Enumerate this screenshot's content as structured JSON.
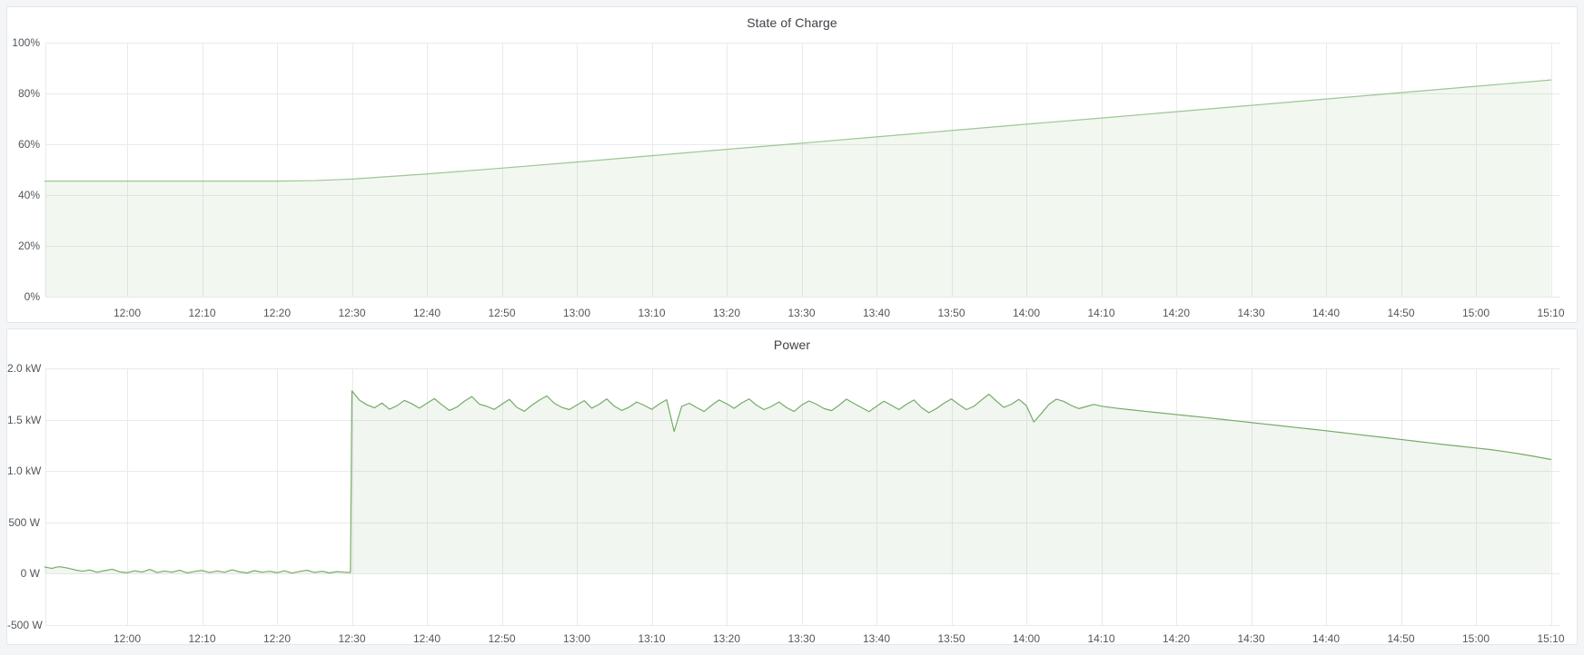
{
  "chart_data": [
    {
      "type": "area",
      "name": "state-of-charge",
      "title": "State of Charge",
      "ylabel": "",
      "xlabel": "",
      "unit": "%",
      "ylim": [
        0,
        100
      ],
      "x_domain_minutes_from_1200": [
        -11,
        190
      ],
      "grid": true,
      "legend": "none",
      "line_color": "#9dc795",
      "fill_color": "rgba(123,176,110,0.10)",
      "yticks": [
        {
          "v": 100,
          "label": "100%"
        },
        {
          "v": 80,
          "label": "80%"
        },
        {
          "v": 60,
          "label": "60%"
        },
        {
          "v": 40,
          "label": "40%"
        },
        {
          "v": 20,
          "label": "20%"
        },
        {
          "v": 0,
          "label": "0%"
        }
      ],
      "xticks": [
        {
          "t": 0,
          "label": "12:00"
        },
        {
          "t": 10,
          "label": "12:10"
        },
        {
          "t": 20,
          "label": "12:20"
        },
        {
          "t": 30,
          "label": "12:30"
        },
        {
          "t": 40,
          "label": "12:40"
        },
        {
          "t": 50,
          "label": "12:50"
        },
        {
          "t": 60,
          "label": "13:00"
        },
        {
          "t": 70,
          "label": "13:10"
        },
        {
          "t": 80,
          "label": "13:20"
        },
        {
          "t": 90,
          "label": "13:30"
        },
        {
          "t": 100,
          "label": "13:40"
        },
        {
          "t": 110,
          "label": "13:50"
        },
        {
          "t": 120,
          "label": "14:00"
        },
        {
          "t": 130,
          "label": "14:10"
        },
        {
          "t": 140,
          "label": "14:20"
        },
        {
          "t": 150,
          "label": "14:30"
        },
        {
          "t": 160,
          "label": "14:40"
        },
        {
          "t": 170,
          "label": "14:50"
        },
        {
          "t": 180,
          "label": "15:00"
        },
        {
          "t": 190,
          "label": "15:10"
        }
      ],
      "points": [
        [
          -11,
          45.5
        ],
        [
          0,
          45.5
        ],
        [
          10,
          45.5
        ],
        [
          20,
          45.5
        ],
        [
          25,
          45.7
        ],
        [
          30,
          46.3
        ],
        [
          40,
          48.3
        ],
        [
          50,
          50.6
        ],
        [
          60,
          53.0
        ],
        [
          70,
          55.5
        ],
        [
          80,
          58.0
        ],
        [
          90,
          60.4
        ],
        [
          100,
          62.9
        ],
        [
          110,
          65.4
        ],
        [
          120,
          67.9
        ],
        [
          130,
          70.3
        ],
        [
          140,
          72.8
        ],
        [
          150,
          75.3
        ],
        [
          160,
          77.8
        ],
        [
          170,
          80.3
        ],
        [
          180,
          82.8
        ],
        [
          190,
          85.3
        ]
      ]
    },
    {
      "type": "area",
      "name": "power",
      "title": "Power",
      "ylabel": "",
      "xlabel": "",
      "unit": "W",
      "ylim": [
        -500,
        2000
      ],
      "x_domain_minutes_from_1200": [
        -11,
        190
      ],
      "grid": true,
      "legend": "none",
      "line_color": "#76ab68",
      "fill_color": "rgba(118,171,104,0.10)",
      "yticks": [
        {
          "v": 2000,
          "label": "2.0 kW"
        },
        {
          "v": 1500,
          "label": "1.5 kW"
        },
        {
          "v": 1000,
          "label": "1.0 kW"
        },
        {
          "v": 500,
          "label": "500 W"
        },
        {
          "v": 0,
          "label": "0 W"
        },
        {
          "v": -500,
          "label": "-500 W"
        }
      ],
      "xticks": [
        {
          "t": 0,
          "label": "12:00"
        },
        {
          "t": 10,
          "label": "12:10"
        },
        {
          "t": 20,
          "label": "12:20"
        },
        {
          "t": 30,
          "label": "12:30"
        },
        {
          "t": 40,
          "label": "12:40"
        },
        {
          "t": 50,
          "label": "12:50"
        },
        {
          "t": 60,
          "label": "13:00"
        },
        {
          "t": 70,
          "label": "13:10"
        },
        {
          "t": 80,
          "label": "13:20"
        },
        {
          "t": 90,
          "label": "13:30"
        },
        {
          "t": 100,
          "label": "13:40"
        },
        {
          "t": 110,
          "label": "13:50"
        },
        {
          "t": 120,
          "label": "14:00"
        },
        {
          "t": 130,
          "label": "14:10"
        },
        {
          "t": 140,
          "label": "14:20"
        },
        {
          "t": 150,
          "label": "14:30"
        },
        {
          "t": 160,
          "label": "14:40"
        },
        {
          "t": 170,
          "label": "14:50"
        },
        {
          "t": 180,
          "label": "15:00"
        },
        {
          "t": 190,
          "label": "15:10"
        }
      ],
      "points": [
        [
          -11,
          66
        ],
        [
          -10.5,
          58
        ],
        [
          -10,
          52
        ],
        [
          -9.5,
          64
        ],
        [
          -9,
          68
        ],
        [
          -8,
          56
        ],
        [
          -7,
          38
        ],
        [
          -6,
          24
        ],
        [
          -5,
          36
        ],
        [
          -4,
          14
        ],
        [
          -3,
          30
        ],
        [
          -2,
          44
        ],
        [
          -1,
          18
        ],
        [
          0,
          10
        ],
        [
          1,
          28
        ],
        [
          2,
          16
        ],
        [
          3,
          42
        ],
        [
          4,
          12
        ],
        [
          5,
          26
        ],
        [
          6,
          15
        ],
        [
          7,
          34
        ],
        [
          8,
          8
        ],
        [
          9,
          22
        ],
        [
          10,
          32
        ],
        [
          11,
          12
        ],
        [
          12,
          26
        ],
        [
          13,
          14
        ],
        [
          14,
          38
        ],
        [
          15,
          18
        ],
        [
          16,
          8
        ],
        [
          17,
          30
        ],
        [
          18,
          14
        ],
        [
          19,
          24
        ],
        [
          20,
          10
        ],
        [
          21,
          28
        ],
        [
          22,
          6
        ],
        [
          23,
          22
        ],
        [
          24,
          34
        ],
        [
          25,
          12
        ],
        [
          26,
          24
        ],
        [
          27,
          8
        ],
        [
          28,
          20
        ],
        [
          29,
          14
        ],
        [
          29.8,
          12
        ],
        [
          30,
          1780
        ],
        [
          31,
          1690
        ],
        [
          32,
          1645
        ],
        [
          33,
          1615
        ],
        [
          34,
          1662
        ],
        [
          35,
          1602
        ],
        [
          36,
          1635
        ],
        [
          37,
          1688
        ],
        [
          38,
          1655
        ],
        [
          39,
          1612
        ],
        [
          40,
          1660
        ],
        [
          41,
          1705
        ],
        [
          42,
          1645
        ],
        [
          43,
          1590
        ],
        [
          44,
          1622
        ],
        [
          45,
          1680
        ],
        [
          46,
          1725
        ],
        [
          47,
          1652
        ],
        [
          48,
          1630
        ],
        [
          49,
          1600
        ],
        [
          50,
          1650
        ],
        [
          51,
          1698
        ],
        [
          52,
          1620
        ],
        [
          53,
          1582
        ],
        [
          54,
          1640
        ],
        [
          55,
          1690
        ],
        [
          56,
          1732
        ],
        [
          57,
          1660
        ],
        [
          58,
          1620
        ],
        [
          59,
          1598
        ],
        [
          60,
          1642
        ],
        [
          61,
          1685
        ],
        [
          62,
          1612
        ],
        [
          63,
          1650
        ],
        [
          64,
          1702
        ],
        [
          65,
          1632
        ],
        [
          66,
          1590
        ],
        [
          67,
          1622
        ],
        [
          68,
          1672
        ],
        [
          69,
          1640
        ],
        [
          70,
          1600
        ],
        [
          71,
          1652
        ],
        [
          72,
          1695
        ],
        [
          73,
          1385
        ],
        [
          74,
          1628
        ],
        [
          75,
          1660
        ],
        [
          76,
          1618
        ],
        [
          77,
          1580
        ],
        [
          78,
          1640
        ],
        [
          79,
          1692
        ],
        [
          80,
          1655
        ],
        [
          81,
          1610
        ],
        [
          82,
          1662
        ],
        [
          83,
          1702
        ],
        [
          84,
          1640
        ],
        [
          85,
          1598
        ],
        [
          86,
          1630
        ],
        [
          87,
          1672
        ],
        [
          88,
          1618
        ],
        [
          89,
          1580
        ],
        [
          90,
          1642
        ],
        [
          91,
          1682
        ],
        [
          92,
          1650
        ],
        [
          93,
          1608
        ],
        [
          94,
          1588
        ],
        [
          95,
          1640
        ],
        [
          96,
          1700
        ],
        [
          97,
          1658
        ],
        [
          98,
          1618
        ],
        [
          99,
          1578
        ],
        [
          100,
          1630
        ],
        [
          101,
          1680
        ],
        [
          102,
          1640
        ],
        [
          103,
          1598
        ],
        [
          104,
          1650
        ],
        [
          105,
          1692
        ],
        [
          106,
          1618
        ],
        [
          107,
          1568
        ],
        [
          108,
          1608
        ],
        [
          109,
          1660
        ],
        [
          110,
          1702
        ],
        [
          111,
          1648
        ],
        [
          112,
          1598
        ],
        [
          113,
          1630
        ],
        [
          114,
          1690
        ],
        [
          115,
          1748
        ],
        [
          116,
          1682
        ],
        [
          117,
          1620
        ],
        [
          118,
          1650
        ],
        [
          119,
          1698
        ],
        [
          120,
          1638
        ],
        [
          121,
          1478
        ],
        [
          122,
          1560
        ],
        [
          123,
          1648
        ],
        [
          124,
          1700
        ],
        [
          125,
          1678
        ],
        [
          126,
          1638
        ],
        [
          127,
          1608
        ],
        [
          128,
          1628
        ],
        [
          129,
          1648
        ],
        [
          130,
          1632
        ],
        [
          132,
          1612
        ],
        [
          134,
          1596
        ],
        [
          136,
          1580
        ],
        [
          138,
          1565
        ],
        [
          140,
          1550
        ],
        [
          142,
          1535
        ],
        [
          144,
          1520
        ],
        [
          146,
          1504
        ],
        [
          148,
          1488
        ],
        [
          150,
          1472
        ],
        [
          152,
          1456
        ],
        [
          154,
          1440
        ],
        [
          156,
          1424
        ],
        [
          158,
          1408
        ],
        [
          160,
          1392
        ],
        [
          162,
          1375
        ],
        [
          164,
          1358
        ],
        [
          166,
          1341
        ],
        [
          168,
          1324
        ],
        [
          170,
          1307
        ],
        [
          172,
          1290
        ],
        [
          174,
          1273
        ],
        [
          176,
          1256
        ],
        [
          178,
          1240
        ],
        [
          180,
          1224
        ],
        [
          182,
          1208
        ],
        [
          184,
          1188
        ],
        [
          186,
          1165
        ],
        [
          188,
          1140
        ],
        [
          190,
          1112
        ]
      ]
    }
  ]
}
